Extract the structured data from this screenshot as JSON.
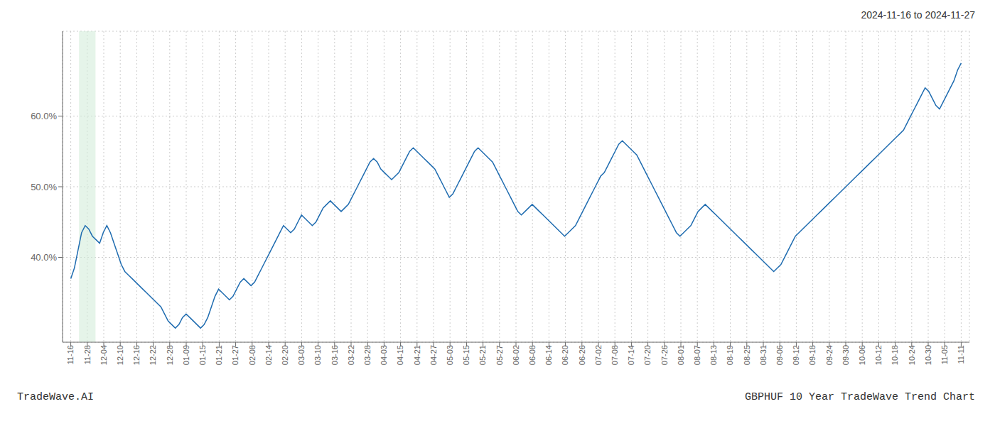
{
  "chart_data": {
    "type": "line",
    "title": "2024-11-16 to 2024-11-27",
    "annotations": [
      "TradeWave.AI",
      "GBPHUF 10 Year TradeWave Trend Chart"
    ],
    "color": "#1f6cb0",
    "grid": true,
    "xlim": [
      -0.5,
      54.5
    ],
    "xticks": [
      {
        "value": 0,
        "label": "11-16"
      },
      {
        "value": 1,
        "label": "11-28"
      },
      {
        "value": 2,
        "label": "12-04"
      },
      {
        "value": 3,
        "label": "12-10"
      },
      {
        "value": 4,
        "label": "12-16"
      },
      {
        "value": 5,
        "label": "12-22"
      },
      {
        "value": 6,
        "label": "12-28"
      },
      {
        "value": 7,
        "label": "01-09"
      },
      {
        "value": 8,
        "label": "01-15"
      },
      {
        "value": 9,
        "label": "01-21"
      },
      {
        "value": 10,
        "label": "01-27"
      },
      {
        "value": 11,
        "label": "02-08"
      },
      {
        "value": 12,
        "label": "02-14"
      },
      {
        "value": 13,
        "label": "02-20"
      },
      {
        "value": 14,
        "label": "03-03"
      },
      {
        "value": 15,
        "label": "03-10"
      },
      {
        "value": 16,
        "label": "03-16"
      },
      {
        "value": 17,
        "label": "03-22"
      },
      {
        "value": 18,
        "label": "03-28"
      },
      {
        "value": 19,
        "label": "04-03"
      },
      {
        "value": 20,
        "label": "04-15"
      },
      {
        "value": 21,
        "label": "04-21"
      },
      {
        "value": 22,
        "label": "04-27"
      },
      {
        "value": 23,
        "label": "05-03"
      },
      {
        "value": 24,
        "label": "05-15"
      },
      {
        "value": 25,
        "label": "05-21"
      },
      {
        "value": 26,
        "label": "05-27"
      },
      {
        "value": 27,
        "label": "06-02"
      },
      {
        "value": 28,
        "label": "06-08"
      },
      {
        "value": 29,
        "label": "06-14"
      },
      {
        "value": 30,
        "label": "06-20"
      },
      {
        "value": 31,
        "label": "06-26"
      },
      {
        "value": 32,
        "label": "07-02"
      },
      {
        "value": 33,
        "label": "07-08"
      },
      {
        "value": 34,
        "label": "07-14"
      },
      {
        "value": 35,
        "label": "07-20"
      },
      {
        "value": 36,
        "label": "07-26"
      },
      {
        "value": 37,
        "label": "08-01"
      },
      {
        "value": 38,
        "label": "08-07"
      },
      {
        "value": 39,
        "label": "08-13"
      },
      {
        "value": 40,
        "label": "08-19"
      },
      {
        "value": 41,
        "label": "08-25"
      },
      {
        "value": 42,
        "label": "08-31"
      },
      {
        "value": 43,
        "label": "09-06"
      },
      {
        "value": 44,
        "label": "09-12"
      },
      {
        "value": 45,
        "label": "09-18"
      },
      {
        "value": 46,
        "label": "09-24"
      },
      {
        "value": 47,
        "label": "09-30"
      },
      {
        "value": 48,
        "label": "10-06"
      },
      {
        "value": 49,
        "label": "10-12"
      },
      {
        "value": 50,
        "label": "10-18"
      },
      {
        "value": 51,
        "label": "10-24"
      },
      {
        "value": 52,
        "label": "10-30"
      },
      {
        "value": 53,
        "label": "11-05"
      },
      {
        "value": 54,
        "label": "11-11"
      }
    ],
    "ylim": [
      28,
      72
    ],
    "yticks": [
      {
        "value": 40.0,
        "label": "40.0%"
      },
      {
        "value": 50.0,
        "label": "50.0%"
      },
      {
        "value": 60.0,
        "label": "60.0%"
      }
    ],
    "shading": {
      "x": [
        0.5,
        1.5
      ],
      "color": "#d4edda"
    },
    "values": [
      37.0,
      38.5,
      41.0,
      43.5,
      44.5,
      44.0,
      43.0,
      42.5,
      42.0,
      43.5,
      44.5,
      43.5,
      42.0,
      40.5,
      39.0,
      38.0,
      37.5,
      37.0,
      36.5,
      36.0,
      35.5,
      35.0,
      34.5,
      34.0,
      33.5,
      33.0,
      32.0,
      31.0,
      30.5,
      30.0,
      30.5,
      31.5,
      32.0,
      31.5,
      31.0,
      30.5,
      30.0,
      30.5,
      31.5,
      33.0,
      34.5,
      35.5,
      35.0,
      34.5,
      34.0,
      34.5,
      35.5,
      36.5,
      37.0,
      36.5,
      36.0,
      36.5,
      37.5,
      38.5,
      39.5,
      40.5,
      41.5,
      42.5,
      43.5,
      44.5,
      44.0,
      43.5,
      44.0,
      45.0,
      46.0,
      45.5,
      45.0,
      44.5,
      45.0,
      46.0,
      47.0,
      47.5,
      48.0,
      47.5,
      47.0,
      46.5,
      47.0,
      47.5,
      48.5,
      49.5,
      50.5,
      51.5,
      52.5,
      53.5,
      54.0,
      53.5,
      52.5,
      52.0,
      51.5,
      51.0,
      51.5,
      52.0,
      53.0,
      54.0,
      55.0,
      55.5,
      55.0,
      54.5,
      54.0,
      53.5,
      53.0,
      52.5,
      51.5,
      50.5,
      49.5,
      48.5,
      49.0,
      50.0,
      51.0,
      52.0,
      53.0,
      54.0,
      55.0,
      55.5,
      55.0,
      54.5,
      54.0,
      53.5,
      52.5,
      51.5,
      50.5,
      49.5,
      48.5,
      47.5,
      46.5,
      46.0,
      46.5,
      47.0,
      47.5,
      47.0,
      46.5,
      46.0,
      45.5,
      45.0,
      44.5,
      44.0,
      43.5,
      43.0,
      43.5,
      44.0,
      44.5,
      45.5,
      46.5,
      47.5,
      48.5,
      49.5,
      50.5,
      51.5,
      52.0,
      53.0,
      54.0,
      55.0,
      56.0,
      56.5,
      56.0,
      55.5,
      55.0,
      54.5,
      53.5,
      52.5,
      51.5,
      50.5,
      49.5,
      48.5,
      47.5,
      46.5,
      45.5,
      44.5,
      43.5,
      43.0,
      43.5,
      44.0,
      44.5,
      45.5,
      46.5,
      47.0,
      47.5,
      47.0,
      46.5,
      46.0,
      45.5,
      45.0,
      44.5,
      44.0,
      43.5,
      43.0,
      42.5,
      42.0,
      41.5,
      41.0,
      40.5,
      40.0,
      39.5,
      39.0,
      38.5,
      38.0,
      38.5,
      39.0,
      40.0,
      41.0,
      42.0,
      43.0,
      43.5,
      44.0,
      44.5,
      45.0,
      45.5,
      46.0,
      46.5,
      47.0,
      47.5,
      48.0,
      48.5,
      49.0,
      49.5,
      50.0,
      50.5,
      51.0,
      51.5,
      52.0,
      52.5,
      53.0,
      53.5,
      54.0,
      54.5,
      55.0,
      55.5,
      56.0,
      56.5,
      57.0,
      57.5,
      58.0,
      59.0,
      60.0,
      61.0,
      62.0,
      63.0,
      64.0,
      63.5,
      62.5,
      61.5,
      61.0,
      62.0,
      63.0,
      64.0,
      65.0,
      66.5,
      67.5
    ]
  }
}
